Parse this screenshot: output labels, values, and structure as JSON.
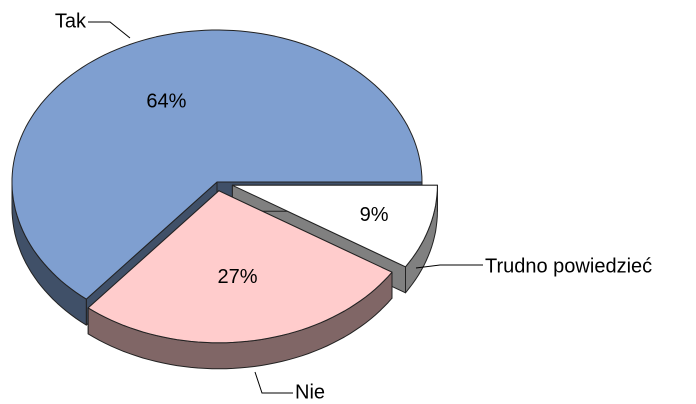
{
  "chart_data": {
    "type": "pie",
    "categories": [
      "Tak",
      "Nie",
      "Trudno powiedzieć"
    ],
    "values": [
      64,
      27,
      9
    ],
    "value_labels": [
      "64%",
      "27%",
      "9%"
    ],
    "colors": [
      "#7f9fd0",
      "#ffcccc",
      "#ffffff"
    ]
  }
}
